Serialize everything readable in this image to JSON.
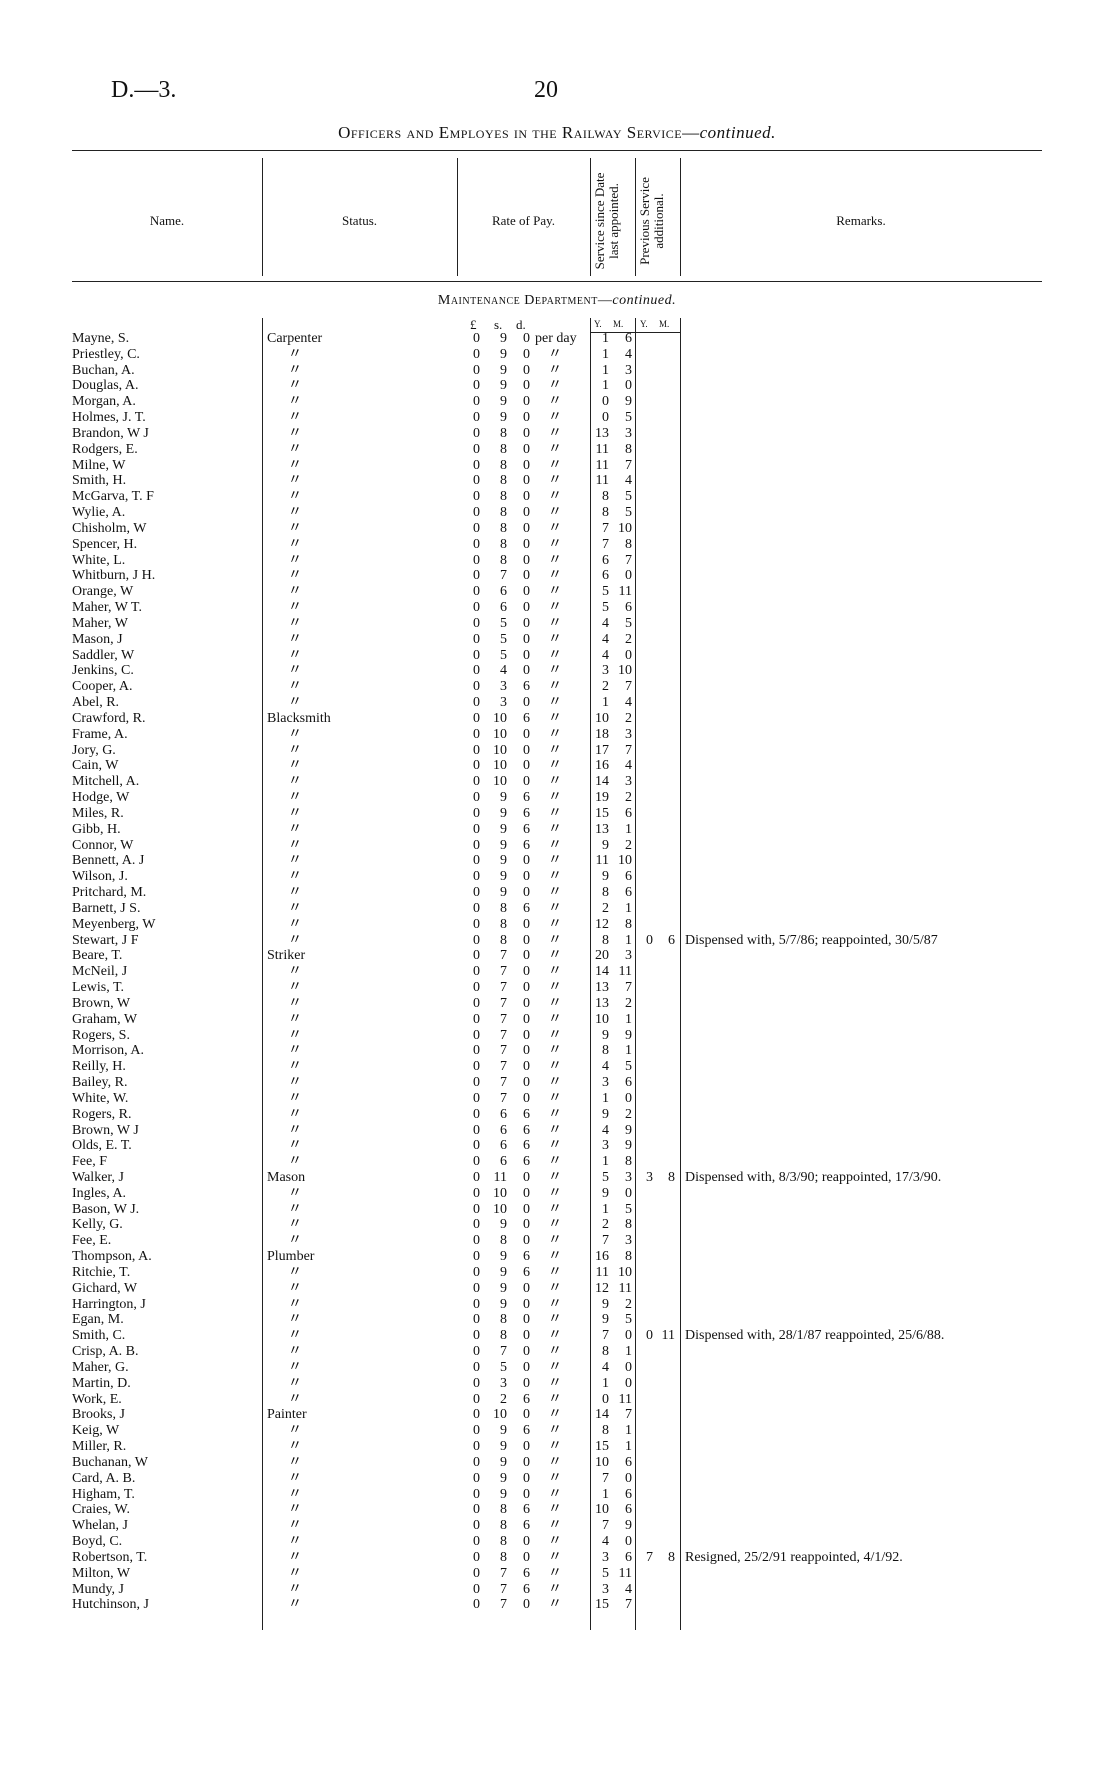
{
  "header": {
    "code": "D.—3.",
    "page": "20",
    "title": "Officers and Employes in the Railway Service—",
    "title_suffix": "continued."
  },
  "columns": {
    "name": "Name.",
    "status": "Status.",
    "pay": "Rate of Pay.",
    "service": "Service since Date last appointed.",
    "previous": "Previous Service additional.",
    "remarks": "Remarks."
  },
  "section": {
    "title": "Maintenance Department—",
    "suffix": "continued."
  },
  "units": {
    "pounds": "£",
    "shillings": "s.",
    "pence": "d.",
    "service_y": "Y.",
    "service_m": "M.",
    "previous_y": "Y.",
    "previous_m": "M."
  },
  "table": {
    "rows": [
      [
        "Mayne, S.",
        "Carpenter",
        0,
        9,
        0,
        "per day",
        1,
        6
      ],
      [
        "Priestley, C.",
        "〃",
        0,
        9,
        0,
        "〃",
        1,
        4
      ],
      [
        "Buchan, A.",
        "〃",
        0,
        9,
        0,
        "〃",
        1,
        3
      ],
      [
        "Douglas, A.",
        "〃",
        0,
        9,
        0,
        "〃",
        1,
        0
      ],
      [
        "Morgan, A.",
        "〃",
        0,
        9,
        0,
        "〃",
        0,
        9
      ],
      [
        "Holmes, J. T.",
        "〃",
        0,
        9,
        0,
        "〃",
        0,
        5
      ],
      [
        "Brandon, W J",
        "〃",
        0,
        8,
        0,
        "〃",
        13,
        3
      ],
      [
        "Rodgers, E.",
        "〃",
        0,
        8,
        0,
        "〃",
        11,
        8
      ],
      [
        "Milne, W",
        "〃",
        0,
        8,
        0,
        "〃",
        11,
        7
      ],
      [
        "Smith, H.",
        "〃",
        0,
        8,
        0,
        "〃",
        11,
        4
      ],
      [
        "McGarva, T. F",
        "〃",
        0,
        8,
        0,
        "〃",
        8,
        5
      ],
      [
        "Wylie, A.",
        "〃",
        0,
        8,
        0,
        "〃",
        8,
        5
      ],
      [
        "Chisholm, W",
        "〃",
        0,
        8,
        0,
        "〃",
        7,
        10
      ],
      [
        "Spencer, H.",
        "〃",
        0,
        8,
        0,
        "〃",
        7,
        8
      ],
      [
        "White, L.",
        "〃",
        0,
        8,
        0,
        "〃",
        6,
        7
      ],
      [
        "Whitburn, J H.",
        "〃",
        0,
        7,
        0,
        "〃",
        6,
        0
      ],
      [
        "Orange, W",
        "〃",
        0,
        6,
        0,
        "〃",
        5,
        11
      ],
      [
        "Maher, W T.",
        "〃",
        0,
        6,
        0,
        "〃",
        5,
        6
      ],
      [
        "Maher, W",
        "〃",
        0,
        5,
        0,
        "〃",
        4,
        5
      ],
      [
        "Mason, J",
        "〃",
        0,
        5,
        0,
        "〃",
        4,
        2
      ],
      [
        "Saddler, W",
        "〃",
        0,
        5,
        0,
        "〃",
        4,
        0
      ],
      [
        "Jenkins, C.",
        "〃",
        0,
        4,
        0,
        "〃",
        3,
        10
      ],
      [
        "Cooper, A.",
        "〃",
        0,
        3,
        6,
        "〃",
        2,
        7
      ],
      [
        "Abel, R.",
        "〃",
        0,
        3,
        0,
        "〃",
        1,
        4
      ],
      [
        "Crawford, R.",
        "Blacksmith",
        0,
        10,
        6,
        "〃",
        10,
        2
      ],
      [
        "Frame, A.",
        "〃",
        0,
        10,
        0,
        "〃",
        18,
        3
      ],
      [
        "Jory, G.",
        "〃",
        0,
        10,
        0,
        "〃",
        17,
        7
      ],
      [
        "Cain, W",
        "〃",
        0,
        10,
        0,
        "〃",
        16,
        4
      ],
      [
        "Mitchell, A.",
        "〃",
        0,
        10,
        0,
        "〃",
        14,
        3
      ],
      [
        "Hodge, W",
        "〃",
        0,
        9,
        6,
        "〃",
        19,
        2
      ],
      [
        "Miles, R.",
        "〃",
        0,
        9,
        6,
        "〃",
        15,
        6
      ],
      [
        "Gibb, H.",
        "〃",
        0,
        9,
        6,
        "〃",
        13,
        1
      ],
      [
        "Connor, W",
        "〃",
        0,
        9,
        6,
        "〃",
        9,
        2
      ],
      [
        "Bennett, A. J",
        "〃",
        0,
        9,
        0,
        "〃",
        11,
        10
      ],
      [
        "Wilson, J.",
        "〃",
        0,
        9,
        0,
        "〃",
        9,
        6
      ],
      [
        "Pritchard, M.",
        "〃",
        0,
        9,
        0,
        "〃",
        8,
        6
      ],
      [
        "Barnett, J S.",
        "〃",
        0,
        8,
        6,
        "〃",
        2,
        1
      ],
      [
        "Meyenberg, W",
        "〃",
        0,
        8,
        0,
        "〃",
        12,
        8
      ],
      [
        "Stewart, J F",
        "〃",
        0,
        8,
        0,
        "〃",
        8,
        1,
        0,
        6,
        "Dispensed with, 5/7/86; reappointed, 30/5/87"
      ],
      [
        "Beare, T.",
        "Striker",
        0,
        7,
        0,
        "〃",
        20,
        3
      ],
      [
        "McNeil, J",
        "〃",
        0,
        7,
        0,
        "〃",
        14,
        11
      ],
      [
        "Lewis, T.",
        "〃",
        0,
        7,
        0,
        "〃",
        13,
        7
      ],
      [
        "Brown, W",
        "〃",
        0,
        7,
        0,
        "〃",
        13,
        2
      ],
      [
        "Graham, W",
        "〃",
        0,
        7,
        0,
        "〃",
        10,
        1
      ],
      [
        "Rogers, S.",
        "〃",
        0,
        7,
        0,
        "〃",
        9,
        9
      ],
      [
        "Morrison, A.",
        "〃",
        0,
        7,
        0,
        "〃",
        8,
        1
      ],
      [
        "Reilly, H.",
        "〃",
        0,
        7,
        0,
        "〃",
        4,
        5
      ],
      [
        "Bailey, R.",
        "〃",
        0,
        7,
        0,
        "〃",
        3,
        6
      ],
      [
        "White, W.",
        "〃",
        0,
        7,
        0,
        "〃",
        1,
        0
      ],
      [
        "Rogers, R.",
        "〃",
        0,
        6,
        6,
        "〃",
        9,
        2
      ],
      [
        "Brown, W J",
        "〃",
        0,
        6,
        6,
        "〃",
        4,
        9
      ],
      [
        "Olds, E. T.",
        "〃",
        0,
        6,
        6,
        "〃",
        3,
        9
      ],
      [
        "Fee, F",
        "〃",
        0,
        6,
        6,
        "〃",
        1,
        8
      ],
      [
        "Walker, J",
        "Mason",
        0,
        11,
        0,
        "〃",
        5,
        3,
        3,
        8,
        "Dispensed with, 8/3/90; reappointed, 17/3/90."
      ],
      [
        "Ingles, A.",
        "〃",
        0,
        10,
        0,
        "〃",
        9,
        0
      ],
      [
        "Bason, W J.",
        "〃",
        0,
        10,
        0,
        "〃",
        1,
        5
      ],
      [
        "Kelly, G.",
        "〃",
        0,
        9,
        0,
        "〃",
        2,
        8
      ],
      [
        "Fee, E.",
        "〃",
        0,
        8,
        0,
        "〃",
        7,
        3
      ],
      [
        "Thompson, A.",
        "Plumber",
        0,
        9,
        6,
        "〃",
        16,
        8
      ],
      [
        "Ritchie, T.",
        "〃",
        0,
        9,
        6,
        "〃",
        11,
        10
      ],
      [
        "Gichard, W",
        "〃",
        0,
        9,
        0,
        "〃",
        12,
        11
      ],
      [
        "Harrington, J",
        "〃",
        0,
        9,
        0,
        "〃",
        9,
        2
      ],
      [
        "Egan, M.",
        "〃",
        0,
        8,
        0,
        "〃",
        9,
        5
      ],
      [
        "Smith, C.",
        "〃",
        0,
        8,
        0,
        "〃",
        7,
        0,
        0,
        11,
        "Dispensed with, 28/1/87 reappointed, 25/6/88."
      ],
      [
        "Crisp, A. B.",
        "〃",
        0,
        7,
        0,
        "〃",
        8,
        1
      ],
      [
        "Maher, G.",
        "〃",
        0,
        5,
        0,
        "〃",
        4,
        0
      ],
      [
        "Martin, D.",
        "〃",
        0,
        3,
        0,
        "〃",
        1,
        0
      ],
      [
        "Work, E.",
        "〃",
        0,
        2,
        6,
        "〃",
        0,
        11
      ],
      [
        "Brooks, J",
        "Painter",
        0,
        10,
        0,
        "〃",
        14,
        7
      ],
      [
        "Keig, W",
        "〃",
        0,
        9,
        6,
        "〃",
        8,
        1
      ],
      [
        "Miller, R.",
        "〃",
        0,
        9,
        0,
        "〃",
        15,
        1
      ],
      [
        "Buchanan, W",
        "〃",
        0,
        9,
        0,
        "〃",
        10,
        6
      ],
      [
        "Card, A. B.",
        "〃",
        0,
        9,
        0,
        "〃",
        7,
        0
      ],
      [
        "Higham, T.",
        "〃",
        0,
        9,
        0,
        "〃",
        1,
        6
      ],
      [
        "Craies, W.",
        "〃",
        0,
        8,
        6,
        "〃",
        10,
        6
      ],
      [
        "Whelan, J",
        "〃",
        0,
        8,
        6,
        "〃",
        7,
        9
      ],
      [
        "Boyd, C.",
        "〃",
        0,
        8,
        0,
        "〃",
        4,
        0
      ],
      [
        "Robertson, T.",
        "〃",
        0,
        8,
        0,
        "〃",
        3,
        6,
        7,
        8,
        "Resigned, 25/2/91 reappointed, 4/1/92."
      ],
      [
        "Milton, W",
        "〃",
        0,
        7,
        6,
        "〃",
        5,
        11
      ],
      [
        "Mundy, J",
        "〃",
        0,
        7,
        6,
        "〃",
        3,
        4
      ],
      [
        "Hutchinson, J",
        "〃",
        0,
        7,
        0,
        "〃",
        15,
        7
      ]
    ]
  }
}
